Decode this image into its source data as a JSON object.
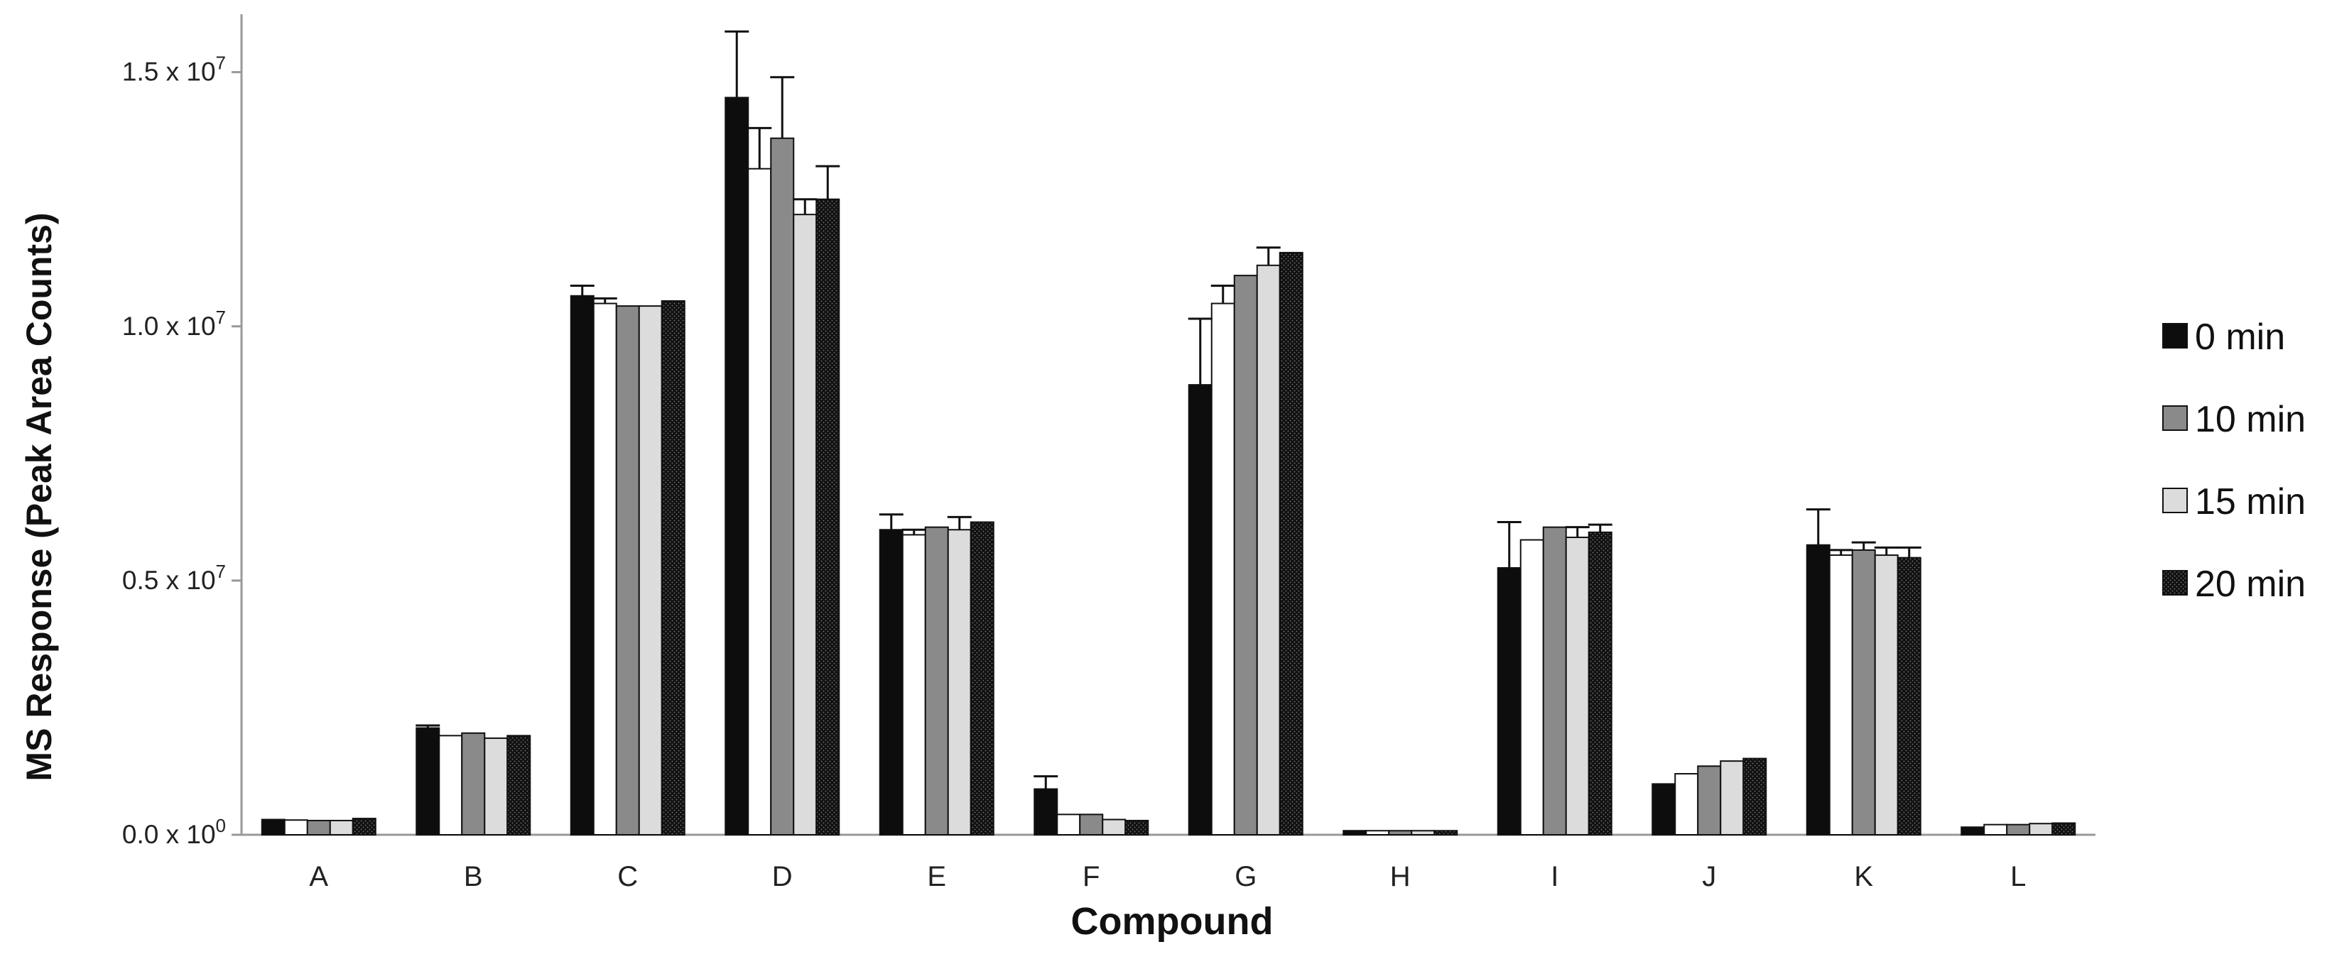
{
  "chart_data": {
    "type": "bar",
    "xlabel": "Compound",
    "ylabel": "MS Response (Peak Area Counts)",
    "ylim": [
      0,
      16000000
    ],
    "yticks": [
      {
        "value": 0,
        "mantissa": "0.0 x 10",
        "exp": "0"
      },
      {
        "value": 5000000,
        "mantissa": "0.5 x 10",
        "exp": "7"
      },
      {
        "value": 10000000,
        "mantissa": "1.0 x 10",
        "exp": "7"
      },
      {
        "value": 15000000,
        "mantissa": "1.5 x 10",
        "exp": "7"
      }
    ],
    "categories": [
      "A",
      "B",
      "C",
      "D",
      "E",
      "F",
      "G",
      "H",
      "I",
      "J",
      "K",
      "L"
    ],
    "legend_position": "right",
    "series": [
      {
        "name": "0 min",
        "fill": "solid-black",
        "legend": true,
        "values": [
          300000,
          2100000,
          10600000,
          14500000,
          6000000,
          900000,
          8850000,
          80000,
          5250000,
          1000000,
          5700000,
          150000
        ],
        "errors": [
          0,
          50000,
          200000,
          1300000,
          300000,
          250000,
          1300000,
          0,
          900000,
          0,
          700000,
          0
        ]
      },
      {
        "name": "",
        "fill": "white",
        "legend": false,
        "values": [
          290000,
          1950000,
          10450000,
          13100000,
          5900000,
          400000,
          10450000,
          80000,
          5800000,
          1200000,
          5500000,
          200000
        ],
        "errors": [
          0,
          0,
          100000,
          800000,
          100000,
          0,
          350000,
          0,
          0,
          0,
          100000,
          0
        ]
      },
      {
        "name": "10 min",
        "fill": "gray",
        "legend": true,
        "values": [
          280000,
          2000000,
          10400000,
          13700000,
          6050000,
          400000,
          11000000,
          80000,
          6050000,
          1350000,
          5600000,
          200000
        ],
        "errors": [
          0,
          0,
          0,
          1200000,
          0,
          0,
          0,
          0,
          0,
          0,
          150000,
          0
        ]
      },
      {
        "name": "15 min",
        "fill": "light-gray",
        "legend": true,
        "values": [
          280000,
          1900000,
          10400000,
          12200000,
          6000000,
          300000,
          11200000,
          80000,
          5850000,
          1450000,
          5500000,
          220000
        ],
        "errors": [
          0,
          0,
          0,
          300000,
          250000,
          0,
          350000,
          0,
          200000,
          0,
          150000,
          0
        ]
      },
      {
        "name": "20 min",
        "fill": "dotted-black",
        "legend": true,
        "values": [
          320000,
          1950000,
          10500000,
          12500000,
          6150000,
          280000,
          11450000,
          80000,
          5950000,
          1500000,
          5450000,
          230000
        ],
        "errors": [
          0,
          0,
          0,
          650000,
          0,
          0,
          0,
          0,
          150000,
          0,
          200000,
          0
        ]
      }
    ]
  }
}
